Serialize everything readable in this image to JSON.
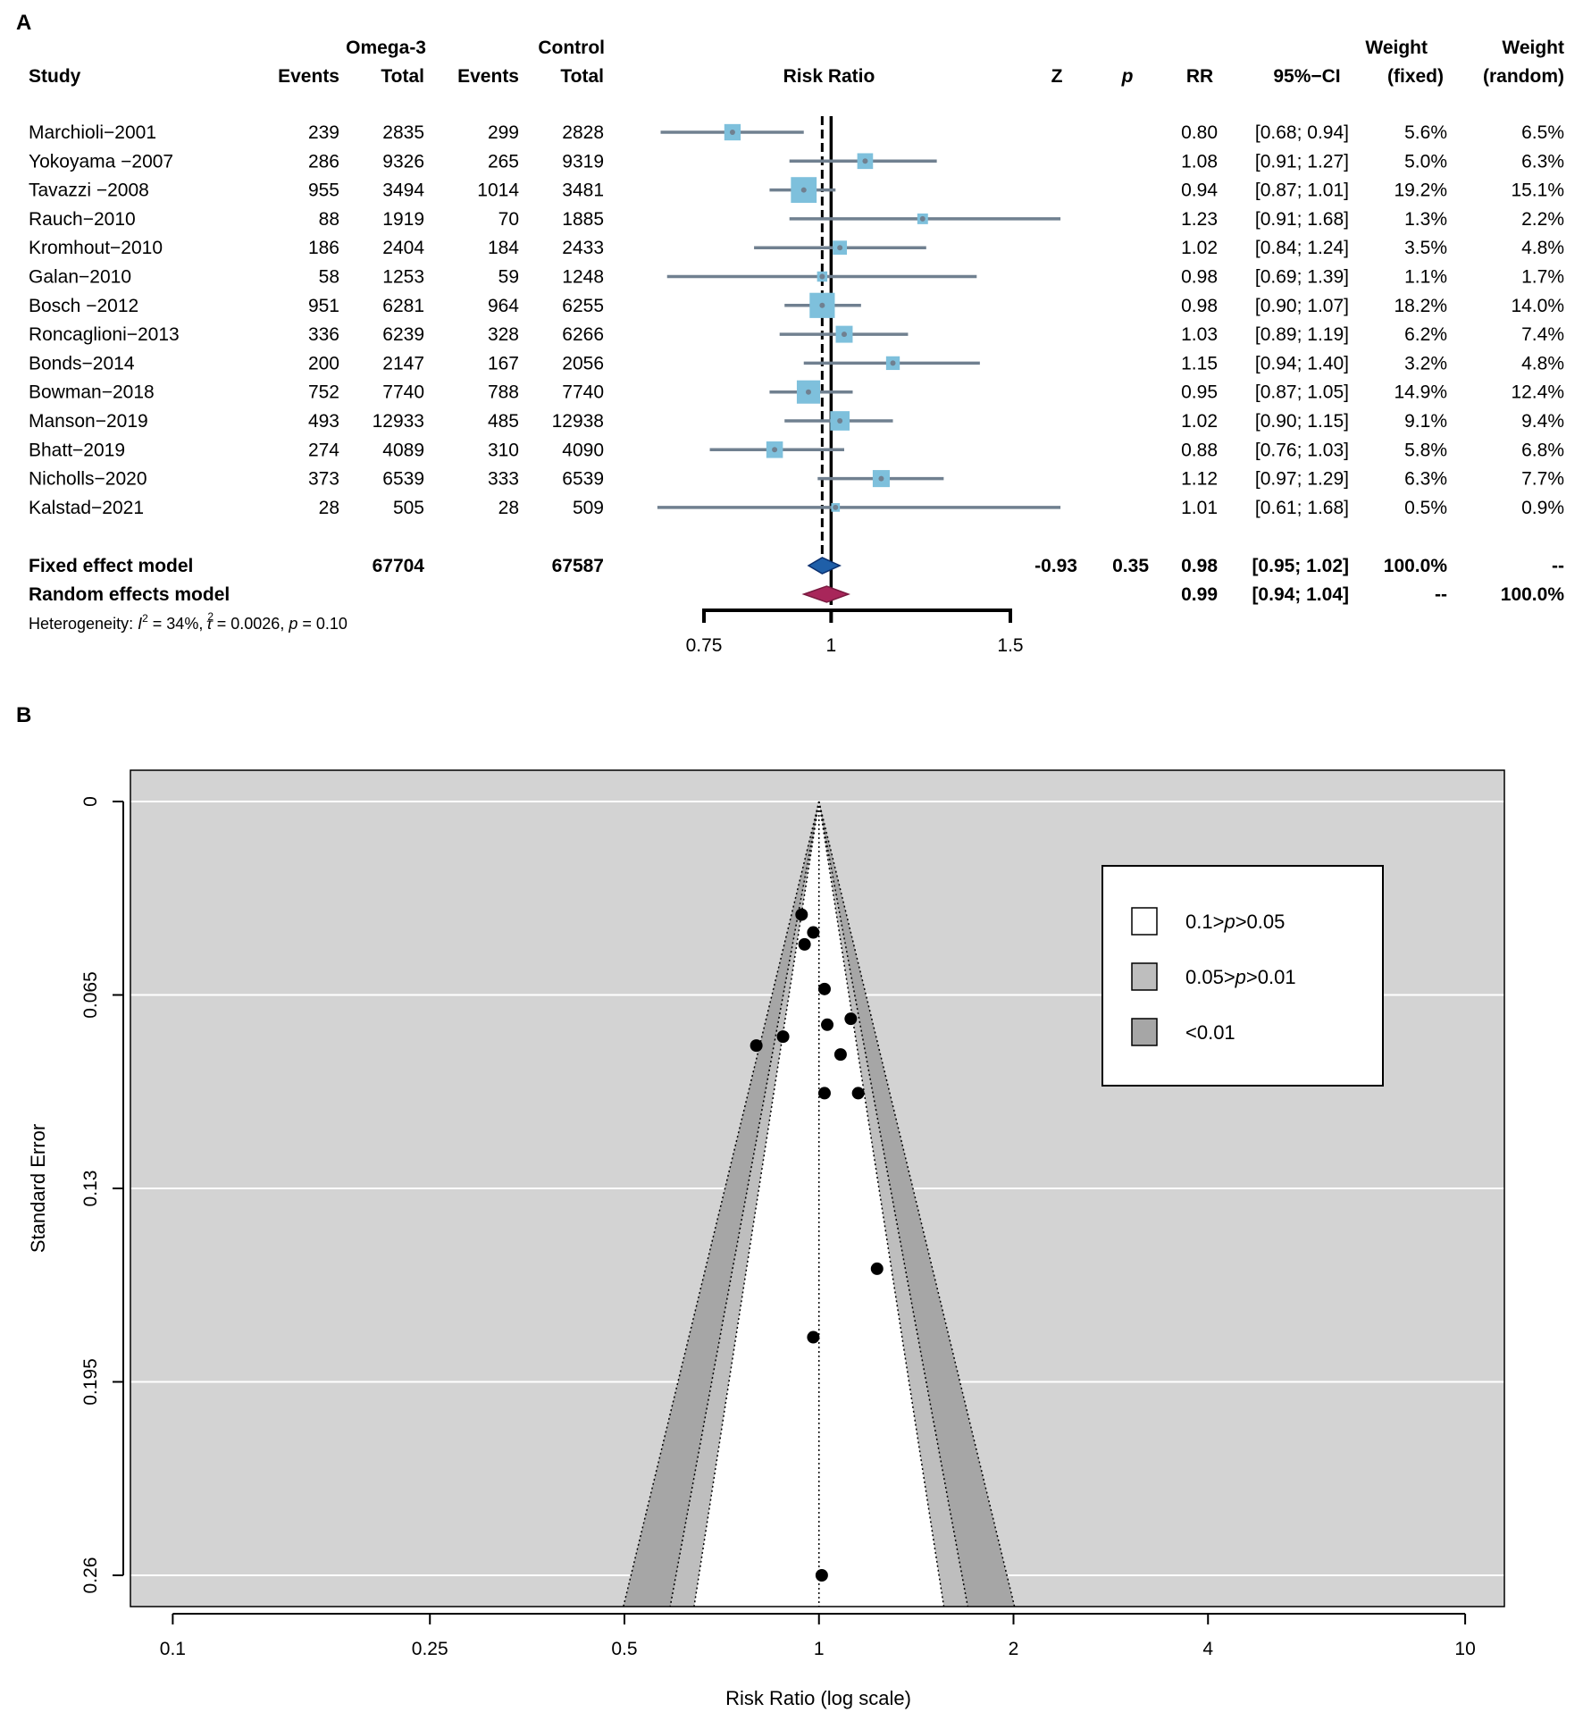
{
  "chart_data": [
    {
      "type": "forest",
      "panel_label": "A",
      "group_headers": {
        "treatment": "Omega-3",
        "control": "Control"
      },
      "columns": {
        "study": "Study",
        "t_events": "Events",
        "t_total": "Total",
        "c_events": "Events",
        "c_total": "Total",
        "plot": "Risk Ratio",
        "z": "Z",
        "p": "p",
        "rr": "RR",
        "ci": "95%−CI",
        "w_fixed_1": "Weight",
        "w_fixed_2": "(fixed)",
        "w_random_1": "Weight",
        "w_random_2": "(random)"
      },
      "studies": [
        {
          "name": "Marchioli−2001",
          "te": "239",
          "tt": "2835",
          "ce": "299",
          "ct": "2828",
          "rr": 0.8,
          "lo": 0.68,
          "hi": 0.94,
          "rr_text": "0.80",
          "ci_text": "[0.68; 0.94]",
          "wf": "5.6%",
          "wr": "6.5%",
          "wfv": 5.6
        },
        {
          "name": "Yokoyama −2007",
          "te": "286",
          "tt": "9326",
          "ce": "265",
          "ct": "9319",
          "rr": 1.08,
          "lo": 0.91,
          "hi": 1.27,
          "rr_text": "1.08",
          "ci_text": "[0.91; 1.27]",
          "wf": "5.0%",
          "wr": "6.3%",
          "wfv": 5.0
        },
        {
          "name": "Tavazzi −2008",
          "te": "955",
          "tt": "3494",
          "ce": "1014",
          "ct": "3481",
          "rr": 0.94,
          "lo": 0.87,
          "hi": 1.01,
          "rr_text": "0.94",
          "ci_text": "[0.87; 1.01]",
          "wf": "19.2%",
          "wr": "15.1%",
          "wfv": 19.2
        },
        {
          "name": "Rauch−2010",
          "te": "88",
          "tt": "1919",
          "ce": "70",
          "ct": "1885",
          "rr": 1.23,
          "lo": 0.91,
          "hi": 1.68,
          "rr_text": "1.23",
          "ci_text": "[0.91; 1.68]",
          "wf": "1.3%",
          "wr": "2.2%",
          "wfv": 1.3
        },
        {
          "name": "Kromhout−2010",
          "te": "186",
          "tt": "2404",
          "ce": "184",
          "ct": "2433",
          "rr": 1.02,
          "lo": 0.84,
          "hi": 1.24,
          "rr_text": "1.02",
          "ci_text": "[0.84; 1.24]",
          "wf": "3.5%",
          "wr": "4.8%",
          "wfv": 3.5
        },
        {
          "name": " Galan−2010",
          "te": "58",
          "tt": "1253",
          "ce": "59",
          "ct": "1248",
          "rr": 0.98,
          "lo": 0.69,
          "hi": 1.39,
          "rr_text": "0.98",
          "ci_text": "[0.69; 1.39]",
          "wf": "1.1%",
          "wr": "1.7%",
          "wfv": 1.1
        },
        {
          "name": "Bosch −2012",
          "te": "951",
          "tt": "6281",
          "ce": "964",
          "ct": "6255",
          "rr": 0.98,
          "lo": 0.9,
          "hi": 1.07,
          "rr_text": "0.98",
          "ci_text": "[0.90; 1.07]",
          "wf": "18.2%",
          "wr": "14.0%",
          "wfv": 18.2
        },
        {
          "name": "Roncaglioni−2013",
          "te": "336",
          "tt": "6239",
          "ce": "328",
          "ct": "6266",
          "rr": 1.03,
          "lo": 0.89,
          "hi": 1.19,
          "rr_text": "1.03",
          "ci_text": "[0.89; 1.19]",
          "wf": "6.2%",
          "wr": "7.4%",
          "wfv": 6.2
        },
        {
          "name": "Bonds−2014",
          "te": "200",
          "tt": "2147",
          "ce": "167",
          "ct": "2056",
          "rr": 1.15,
          "lo": 0.94,
          "hi": 1.4,
          "rr_text": "1.15",
          "ci_text": "[0.94; 1.40]",
          "wf": "3.2%",
          "wr": "4.8%",
          "wfv": 3.2
        },
        {
          "name": "Bowman−2018",
          "te": "752",
          "tt": "7740",
          "ce": "788",
          "ct": "7740",
          "rr": 0.95,
          "lo": 0.87,
          "hi": 1.05,
          "rr_text": "0.95",
          "ci_text": "[0.87; 1.05]",
          "wf": "14.9%",
          "wr": "12.4%",
          "wfv": 14.9
        },
        {
          "name": "Manson−2019",
          "te": "493",
          "tt": "12933",
          "ce": "485",
          "ct": "12938",
          "rr": 1.02,
          "lo": 0.9,
          "hi": 1.15,
          "rr_text": "1.02",
          "ci_text": "[0.90; 1.15]",
          "wf": "9.1%",
          "wr": "9.4%",
          "wfv": 9.1
        },
        {
          "name": "Bhatt−2019",
          "te": "274",
          "tt": "4089",
          "ce": "310",
          "ct": "4090",
          "rr": 0.88,
          "lo": 0.76,
          "hi": 1.03,
          "rr_text": "0.88",
          "ci_text": "[0.76; 1.03]",
          "wf": "5.8%",
          "wr": "6.8%",
          "wfv": 5.8
        },
        {
          "name": "Nicholls−2020",
          "te": "373",
          "tt": "6539",
          "ce": "333",
          "ct": "6539",
          "rr": 1.12,
          "lo": 0.97,
          "hi": 1.29,
          "rr_text": "1.12",
          "ci_text": "[0.97; 1.29]",
          "wf": "6.3%",
          "wr": "7.7%",
          "wfv": 6.3
        },
        {
          "name": "Kalstad−2021",
          "te": "28",
          "tt": "505",
          "ce": "28",
          "ct": "509",
          "rr": 1.01,
          "lo": 0.61,
          "hi": 1.68,
          "rr_text": "1.01",
          "ci_text": "[0.61; 1.68]",
          "wf": "0.5%",
          "wr": "0.9%",
          "wfv": 0.5
        }
      ],
      "fixed": {
        "label": "Fixed effect model",
        "tt": "67704",
        "ct": "67587",
        "z": "-0.93",
        "p": "0.35",
        "rr": 0.98,
        "lo": 0.95,
        "hi": 1.02,
        "rr_text": "0.98",
        "ci_text": "[0.95; 1.02]",
        "wf": "100.0%",
        "wr": "--"
      },
      "random": {
        "label": "Random effects model",
        "rr": 0.99,
        "lo": 0.94,
        "hi": 1.04,
        "rr_text": "0.99",
        "ci_text": "[0.94; 1.04]",
        "wf": "--",
        "wr": "100.0%"
      },
      "heterogeneity": {
        "prefix": "Heterogeneity: ",
        "i2_symbol": "I",
        "sup2": "2",
        "i2_value": " = 34%,  ",
        "tau_symbol": "τ",
        "tau_value": " = 0.0026, ",
        "p_symbol": "p",
        "p_value": " = 0.10"
      },
      "axis": {
        "ticks": [
          0.75,
          1,
          1.5
        ],
        "tick_labels": [
          "0.75",
          "1",
          "1.5"
        ],
        "min": 0.75,
        "max": 1.5
      }
    },
    {
      "type": "funnel",
      "panel_label": "B",
      "xlabel": "Risk Ratio (log scale)",
      "ylabel": "Standard Error",
      "xlim": [
        0.086,
        11.5
      ],
      "ylim": [
        0,
        0.26
      ],
      "x_ticks": [
        0.1,
        0.25,
        0.5,
        1,
        2,
        4,
        10
      ],
      "x_tick_labels": [
        "0.1",
        "0.25",
        "0.5",
        "1",
        "2",
        "4",
        "10"
      ],
      "y_ticks": [
        0,
        0.065,
        0.13,
        0.195,
        0.26
      ],
      "y_tick_labels": [
        "0",
        "0.065",
        "0.13",
        "0.195",
        "0.26"
      ],
      "center": 1,
      "points": [
        {
          "rr": 0.8,
          "se": 0.082
        },
        {
          "rr": 1.08,
          "se": 0.085
        },
        {
          "rr": 0.94,
          "se": 0.038
        },
        {
          "rr": 1.23,
          "se": 0.157
        },
        {
          "rr": 1.02,
          "se": 0.098
        },
        {
          "rr": 0.98,
          "se": 0.18
        },
        {
          "rr": 0.98,
          "se": 0.044
        },
        {
          "rr": 1.03,
          "se": 0.075
        },
        {
          "rr": 1.15,
          "se": 0.098
        },
        {
          "rr": 0.95,
          "se": 0.048
        },
        {
          "rr": 1.02,
          "se": 0.063
        },
        {
          "rr": 0.88,
          "se": 0.079
        },
        {
          "rr": 1.12,
          "se": 0.073
        },
        {
          "rr": 1.01,
          "se": 0.26
        }
      ],
      "legend": [
        {
          "label": "0.1>",
          "italic": "p",
          "label_end": ">0.05",
          "color": "#ffffff"
        },
        {
          "label": "0.05>",
          "italic": "p",
          "label_end": ">0.01",
          "color": "#bebebe"
        },
        {
          "label": "<0.01",
          "italic": "",
          "label_end": "",
          "color": "#a6a6a6"
        }
      ],
      "colors": {
        "background": "#d3d3d3",
        "band_inner": "#bebebe",
        "band_outer": "#a6a6a6",
        "center": "#ffffff"
      }
    }
  ]
}
